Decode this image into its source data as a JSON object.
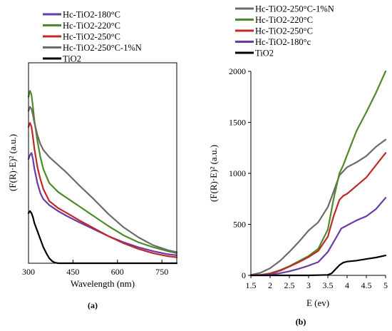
{
  "chart_data": [
    {
      "type": "line",
      "panel_label": "(a)",
      "xlabel": "Wavelength (nm)",
      "ylabel": "(F(R)·E)² (a.u.)",
      "xlim": [
        300,
        800
      ],
      "ylim": [
        0,
        1
      ],
      "xticks": [
        "300",
        "450",
        "600",
        "750"
      ],
      "grid": false,
      "legend_position": "top-left outside",
      "series": [
        {
          "name": "Hc-TiO2-180°C",
          "color": "#6a3aa8",
          "x": [
            300,
            305,
            310,
            315,
            320,
            330,
            340,
            350,
            370,
            400,
            430,
            470,
            520,
            570,
            620,
            670,
            720,
            770,
            800
          ],
          "y": [
            0.52,
            0.54,
            0.55,
            0.52,
            0.47,
            0.4,
            0.35,
            0.32,
            0.29,
            0.26,
            0.235,
            0.205,
            0.17,
            0.135,
            0.105,
            0.08,
            0.06,
            0.045,
            0.04
          ]
        },
        {
          "name": "Hc-TiO2-220°C",
          "color": "#4f8a2a",
          "x": [
            300,
            305,
            310,
            315,
            320,
            330,
            340,
            350,
            370,
            400,
            430,
            470,
            520,
            570,
            620,
            670,
            720,
            770,
            800
          ],
          "y": [
            0.83,
            0.86,
            0.84,
            0.78,
            0.71,
            0.61,
            0.53,
            0.47,
            0.4,
            0.355,
            0.325,
            0.285,
            0.235,
            0.185,
            0.14,
            0.105,
            0.08,
            0.06,
            0.05
          ]
        },
        {
          "name": "Hc-TiO2-250°C",
          "color": "#c0282a",
          "x": [
            300,
            305,
            310,
            315,
            320,
            330,
            340,
            350,
            370,
            400,
            430,
            470,
            520,
            570,
            620,
            670,
            720,
            770,
            800
          ],
          "y": [
            0.68,
            0.7,
            0.68,
            0.63,
            0.57,
            0.48,
            0.42,
            0.37,
            0.31,
            0.275,
            0.25,
            0.215,
            0.175,
            0.135,
            0.1,
            0.072,
            0.05,
            0.035,
            0.03
          ]
        },
        {
          "name": "Hc-TiO2-250°C-1%N",
          "color": "#6b6b6b",
          "x": [
            300,
            305,
            310,
            315,
            320,
            330,
            340,
            350,
            370,
            400,
            430,
            470,
            520,
            570,
            620,
            670,
            720,
            770,
            800
          ],
          "y": [
            0.76,
            0.78,
            0.77,
            0.74,
            0.7,
            0.64,
            0.595,
            0.565,
            0.53,
            0.49,
            0.45,
            0.39,
            0.32,
            0.245,
            0.18,
            0.13,
            0.09,
            0.065,
            0.055
          ]
        },
        {
          "name": "TiO2",
          "color": "#000000",
          "x": [
            300,
            305,
            310,
            315,
            320,
            330,
            340,
            350,
            360,
            370,
            380,
            390,
            400,
            420,
            450,
            500,
            600,
            700,
            800
          ],
          "y": [
            0.25,
            0.26,
            0.25,
            0.23,
            0.2,
            0.16,
            0.12,
            0.08,
            0.05,
            0.025,
            0.01,
            0.003,
            0.0,
            0.0,
            0.0,
            0.0,
            0.0,
            0.0,
            0.0
          ]
        }
      ]
    },
    {
      "type": "line",
      "panel_label": "(b)",
      "xlabel": "E (ev)",
      "ylabel": "(F(R)·E)² (a.u.)",
      "xlim": [
        1.5,
        5
      ],
      "ylim": [
        0,
        2000
      ],
      "xticks": [
        "1.5",
        "2",
        "2.5",
        "3",
        "3.5",
        "4",
        "4.5",
        "5"
      ],
      "yticks": [
        "0",
        "500",
        "1000",
        "1500",
        "2000"
      ],
      "grid": false,
      "legend_position": "top-left outside",
      "series": [
        {
          "name": "Hc-TiO2-250°C-1%N",
          "color": "#6b6b6b",
          "x": [
            1.5,
            1.75,
            2,
            2.25,
            2.5,
            2.75,
            3,
            3.25,
            3.5,
            3.65,
            3.8,
            3.9,
            4,
            4.25,
            4.5,
            4.75,
            5
          ],
          "y": [
            5,
            25,
            70,
            140,
            230,
            330,
            440,
            520,
            670,
            820,
            980,
            1020,
            1060,
            1110,
            1170,
            1260,
            1330
          ]
        },
        {
          "name": "Hc-TiO2-220°C",
          "color": "#4f8a2a",
          "x": [
            1.5,
            1.75,
            2,
            2.25,
            2.5,
            2.75,
            3,
            3.25,
            3.5,
            3.65,
            3.8,
            3.9,
            4,
            4.25,
            4.5,
            4.75,
            5
          ],
          "y": [
            0,
            5,
            20,
            50,
            90,
            140,
            190,
            260,
            450,
            750,
            1000,
            1080,
            1180,
            1420,
            1600,
            1790,
            2000
          ]
        },
        {
          "name": "Hc-TiO2-250°C",
          "color": "#c0282a",
          "x": [
            1.5,
            1.75,
            2,
            2.25,
            2.5,
            2.75,
            3,
            3.25,
            3.5,
            3.65,
            3.8,
            3.9,
            4,
            4.25,
            4.5,
            4.75,
            5
          ],
          "y": [
            0,
            5,
            15,
            45,
            85,
            130,
            180,
            240,
            380,
            580,
            740,
            780,
            800,
            880,
            960,
            1080,
            1200
          ]
        },
        {
          "name": "Hc-TiO2-180°c",
          "color": "#6a3aa8",
          "x": [
            1.5,
            1.75,
            2,
            2.25,
            2.5,
            2.75,
            3,
            3.25,
            3.5,
            3.7,
            3.85,
            3.95,
            4,
            4.25,
            4.5,
            4.75,
            5
          ],
          "y": [
            0,
            2,
            8,
            20,
            40,
            65,
            95,
            130,
            230,
            360,
            460,
            480,
            490,
            540,
            580,
            650,
            760
          ]
        },
        {
          "name": "TiO2",
          "color": "#000000",
          "x": [
            1.5,
            2,
            2.5,
            3,
            3.25,
            3.5,
            3.6,
            3.7,
            3.8,
            3.9,
            4,
            4.25,
            4.5,
            4.75,
            5
          ],
          "y": [
            0,
            0,
            0,
            0,
            2,
            5,
            20,
            60,
            100,
            125,
            135,
            145,
            160,
            175,
            195
          ]
        }
      ]
    }
  ]
}
